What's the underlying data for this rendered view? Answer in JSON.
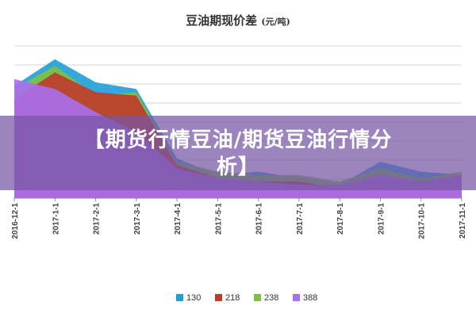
{
  "overlay": {
    "headline_line1": "【期货行情豆油/期货豆油行情分",
    "headline_line2": "析】"
  },
  "chart_data": {
    "type": "area",
    "title": "豆油期现价差",
    "title_unit": "(元/吨)",
    "xlabel": "",
    "ylabel": "",
    "x": [
      "2016-12-1",
      "2017-1-1",
      "2017-2-1",
      "2017-3-1",
      "2017-4-1",
      "2017-5-1",
      "2017-6-1",
      "2017-7-1",
      "2017-8-1",
      "2017-9-1",
      "2017-10-1",
      "2017-11-1"
    ],
    "legend_position": "bottom",
    "grid": true,
    "colors": {
      "130": "#1e9fd4",
      "218": "#c0392b",
      "238": "#7fc043",
      "388": "#a86ff0"
    },
    "series": [
      {
        "name": "130",
        "values": [
          340,
          420,
          350,
          330,
          120,
          70,
          80,
          60,
          40,
          110,
          80,
          70
        ]
      },
      {
        "name": "218",
        "values": [
          300,
          380,
          320,
          310,
          100,
          60,
          50,
          50,
          30,
          60,
          50,
          60
        ]
      },
      {
        "name": "238",
        "values": [
          330,
          400,
          310,
          320,
          110,
          80,
          70,
          70,
          50,
          90,
          60,
          80
        ]
      },
      {
        "name": "388",
        "values": [
          360,
          330,
          260,
          200,
          90,
          60,
          50,
          40,
          40,
          70,
          50,
          70
        ]
      }
    ]
  }
}
